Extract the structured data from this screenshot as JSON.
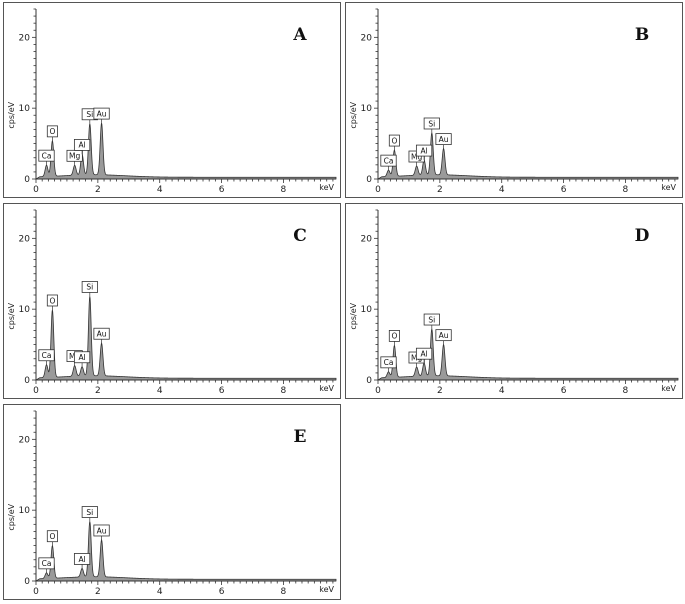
{
  "chart_data": [
    {
      "type": "area",
      "panel_label": "A",
      "ylabel": "cps/eV",
      "xlabel": "keV",
      "xlim": [
        0,
        9.7
      ],
      "ylim": [
        0,
        24
      ],
      "x_ticks": [
        "0",
        "2",
        "4",
        "6",
        "8"
      ],
      "y_ticks": [
        "0",
        "10",
        "20"
      ],
      "peaks": [
        {
          "element": "Ca",
          "kev": 0.34,
          "height": 1.6
        },
        {
          "element": "O",
          "kev": 0.53,
          "height": 5.0
        },
        {
          "element": "Mg",
          "kev": 1.25,
          "height": 1.4
        },
        {
          "element": "Al",
          "kev": 1.49,
          "height": 2.9
        },
        {
          "element": "Si",
          "kev": 1.74,
          "height": 7.2
        },
        {
          "element": "Au",
          "kev": 2.12,
          "height": 7.3
        }
      ]
    },
    {
      "type": "area",
      "panel_label": "B",
      "ylabel": "cps/eV",
      "xlabel": "keV",
      "xlim": [
        0,
        9.7
      ],
      "ylim": [
        0,
        24
      ],
      "x_ticks": [
        "0",
        "2",
        "4",
        "6",
        "8"
      ],
      "y_ticks": [
        "0",
        "10",
        "20"
      ],
      "peaks": [
        {
          "element": "Ca",
          "kev": 0.34,
          "height": 0.9
        },
        {
          "element": "O",
          "kev": 0.53,
          "height": 3.7
        },
        {
          "element": "Mg",
          "kev": 1.25,
          "height": 1.3
        },
        {
          "element": "Al",
          "kev": 1.49,
          "height": 2.1
        },
        {
          "element": "Si",
          "kev": 1.74,
          "height": 5.9
        },
        {
          "element": "Au",
          "kev": 2.12,
          "height": 3.7
        }
      ]
    },
    {
      "type": "area",
      "panel_label": "C",
      "ylabel": "cps/eV",
      "xlabel": "keV",
      "xlim": [
        0,
        9.7
      ],
      "ylim": [
        0,
        24
      ],
      "x_ticks": [
        "0",
        "2",
        "4",
        "6",
        "8"
      ],
      "y_ticks": [
        "0",
        "10",
        "20"
      ],
      "peaks": [
        {
          "element": "Ca",
          "kev": 0.34,
          "height": 1.8
        },
        {
          "element": "O",
          "kev": 0.53,
          "height": 9.5
        },
        {
          "element": "Mg",
          "kev": 1.25,
          "height": 1.5
        },
        {
          "element": "Al",
          "kev": 1.49,
          "height": 1.3
        },
        {
          "element": "Si",
          "kev": 1.74,
          "height": 11.2
        },
        {
          "element": "Au",
          "kev": 2.12,
          "height": 4.6
        }
      ]
    },
    {
      "type": "area",
      "panel_label": "D",
      "ylabel": "cps/eV",
      "xlabel": "keV",
      "xlim": [
        0,
        9.7
      ],
      "ylim": [
        0,
        24
      ],
      "x_ticks": [
        "0",
        "2",
        "4",
        "6",
        "8"
      ],
      "y_ticks": [
        "0",
        "10",
        "20"
      ],
      "peaks": [
        {
          "element": "Ca",
          "kev": 0.34,
          "height": 0.8
        },
        {
          "element": "O",
          "kev": 0.53,
          "height": 4.5
        },
        {
          "element": "Mg",
          "kev": 1.25,
          "height": 1.3
        },
        {
          "element": "Al",
          "kev": 1.49,
          "height": 1.8
        },
        {
          "element": "Si",
          "kev": 1.74,
          "height": 6.6
        },
        {
          "element": "Au",
          "kev": 2.12,
          "height": 4.4
        }
      ]
    },
    {
      "type": "area",
      "panel_label": "E",
      "ylabel": "cps/eV",
      "xlabel": "keV",
      "xlim": [
        0,
        9.7
      ],
      "ylim": [
        0,
        24
      ],
      "x_ticks": [
        "0",
        "2",
        "4",
        "6",
        "8"
      ],
      "y_ticks": [
        "0",
        "10",
        "20"
      ],
      "peaks": [
        {
          "element": "Ca",
          "kev": 0.34,
          "height": 0.8
        },
        {
          "element": "O",
          "kev": 0.53,
          "height": 4.6
        },
        {
          "element": "Al",
          "kev": 1.49,
          "height": 1.2
        },
        {
          "element": "Si",
          "kev": 1.74,
          "height": 7.8
        },
        {
          "element": "Au",
          "kev": 2.12,
          "height": 5.2
        }
      ]
    }
  ]
}
